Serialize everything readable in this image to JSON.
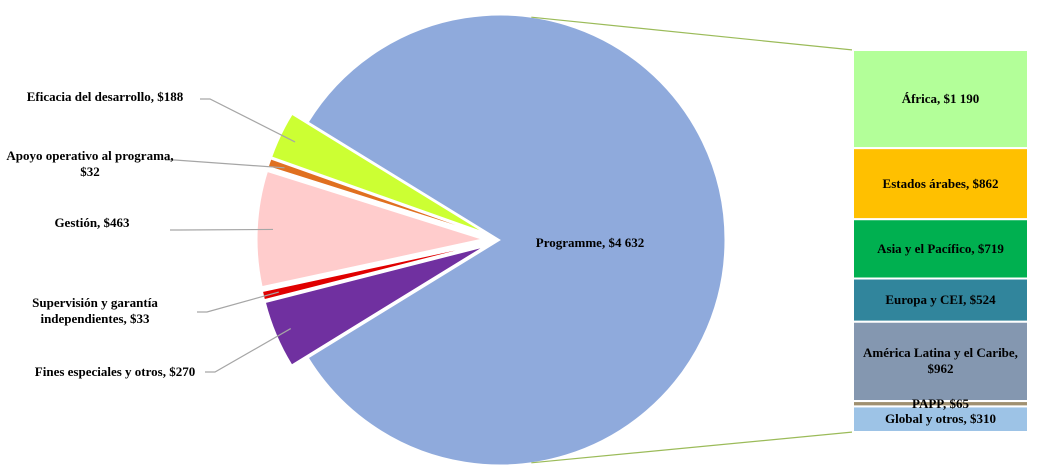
{
  "chart_data": {
    "type": "pie-of-bar",
    "pie": {
      "categories": [
        "Programme, $4 632",
        "Eficacia del desarrollo, $188",
        "Apoyo operativo al programa, $32",
        "Gestión, $463",
        "Supervisión y garantía independientes, $33",
        "Fines especiales y otros, $270"
      ],
      "values": [
        4632,
        188,
        32,
        463,
        33,
        270
      ],
      "colors": [
        "#8faadc",
        "#ccff33",
        "#e07020",
        "#ffcccc",
        "#e00000",
        "#7030a0"
      ]
    },
    "bar": {
      "categories": [
        "África, $1 190",
        "Estados árabes, $862",
        "Asia y el Pacífico, $719",
        "Europa y CEI, $524",
        "América Latina y el Caribe, $962",
        "PAPP, $65",
        "Global y otros, $310"
      ],
      "values": [
        1190,
        862,
        719,
        524,
        962,
        65,
        310
      ],
      "colors": [
        "#b3ff99",
        "#ffc000",
        "#00b050",
        "#31859c",
        "#8497b0",
        "#a09070",
        "#9dc3e6"
      ]
    }
  }
}
